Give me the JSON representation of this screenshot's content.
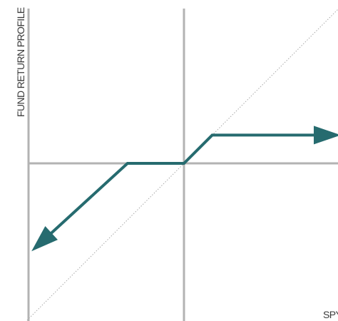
{
  "chart_data": {
    "type": "line",
    "title": "",
    "xlabel": "SPY",
    "ylabel": "FUND RETURN PROFILE",
    "xlim": [
      -1,
      1
    ],
    "ylim": [
      -1,
      1
    ],
    "grid": false,
    "reference_line": {
      "name": "",
      "x": [
        -1,
        1
      ],
      "y": [
        -1,
        1
      ]
    },
    "series": [
      {
        "x": [
          -0.972,
          -0.36,
          0,
          0.18,
          1
        ],
        "y": [
          -0.56,
          0,
          0,
          0.18,
          0.18
        ]
      }
    ],
    "colors": {
      "series": "#266b6f",
      "axes": "#b3b3b3",
      "reference": "#a8a8a8",
      "text": "#3a3a3a"
    }
  }
}
